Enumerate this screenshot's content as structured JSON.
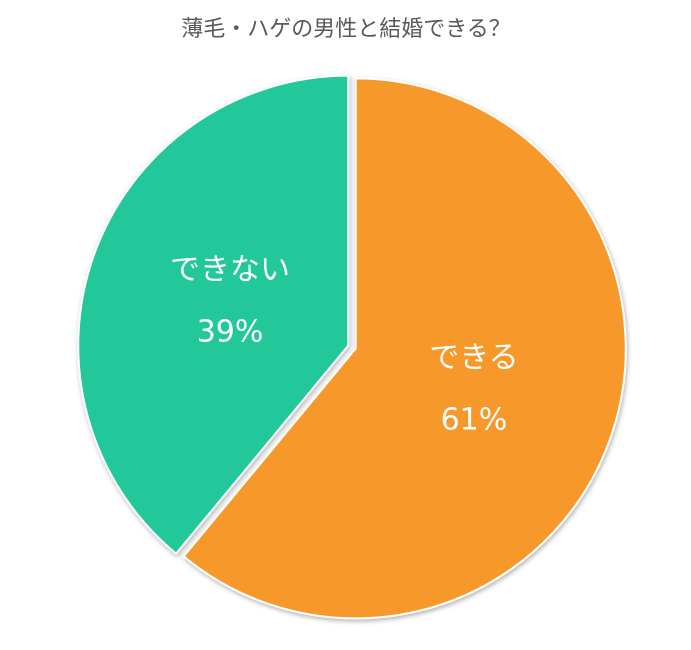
{
  "chart_data": {
    "type": "pie",
    "title": "薄毛・ハゲの男性と結婚できる？",
    "categories": [
      "できる",
      "できない"
    ],
    "values": [
      61,
      39
    ],
    "value_labels": [
      "61%",
      "39%"
    ],
    "colors": [
      "#f7982a",
      "#23c89a"
    ]
  }
}
